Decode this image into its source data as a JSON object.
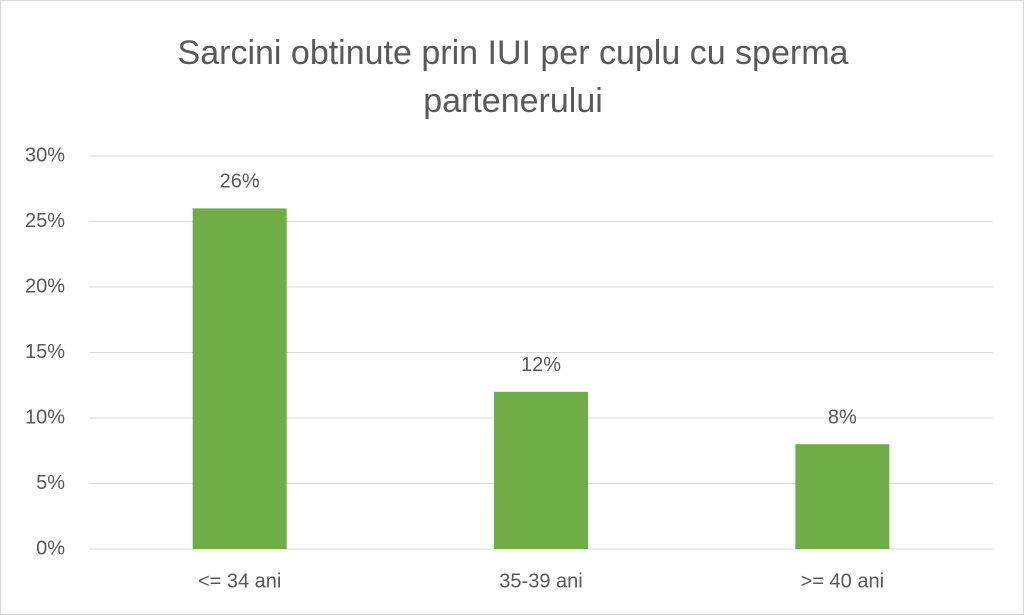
{
  "chart_data": {
    "type": "bar",
    "title": "Sarcini obtinute prin IUI per cuplu cu sperma partenerului",
    "categories": [
      "<= 34 ani",
      "35-39 ani",
      ">= 40 ani"
    ],
    "values": [
      26,
      12,
      8
    ],
    "value_labels": [
      "26%",
      "12%",
      "8%"
    ],
    "color": "#70ad47",
    "ylim": [
      0,
      30
    ],
    "yticks": [
      {
        "value": 0,
        "label": "0%"
      },
      {
        "value": 5,
        "label": "5%"
      },
      {
        "value": 10,
        "label": "10%"
      },
      {
        "value": 15,
        "label": "15%"
      },
      {
        "value": 20,
        "label": "20%"
      },
      {
        "value": 25,
        "label": "25%"
      },
      {
        "value": 30,
        "label": "30%"
      }
    ],
    "grid": true
  }
}
